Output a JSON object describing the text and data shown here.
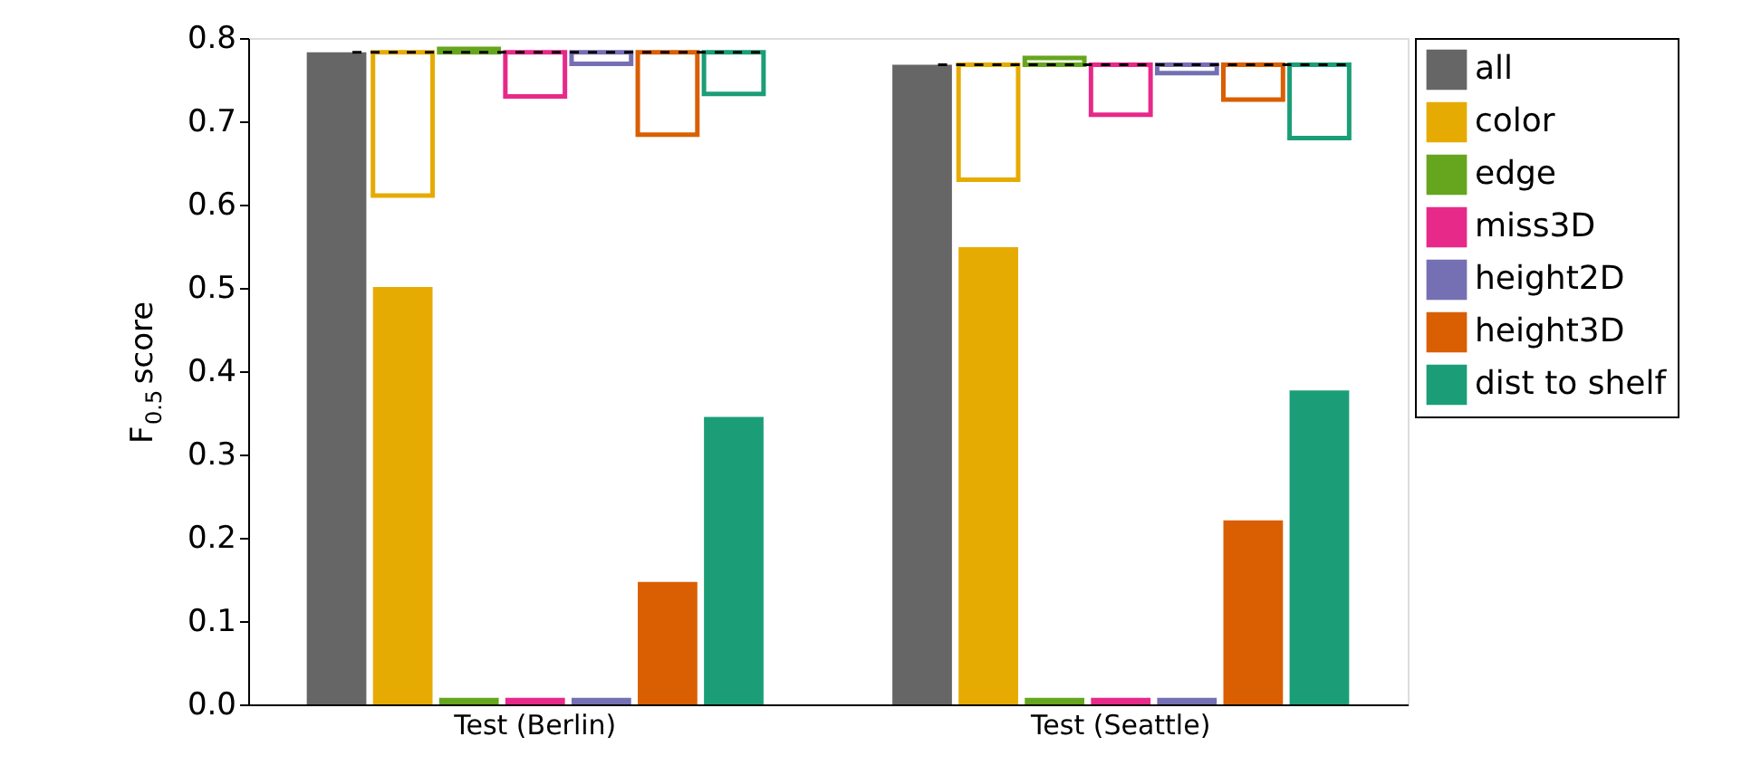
{
  "chart_data": {
    "type": "bar",
    "ylabel": "F$_{0.5}$ score",
    "categories": [
      "Test (Berlin)",
      "Test (Seattle)"
    ],
    "series": [
      {
        "name": "all",
        "color": "#666666",
        "values": [
          0.783,
          0.768
        ]
      },
      {
        "name": "color",
        "color": "#e6ab02",
        "values": [
          0.501,
          0.549
        ]
      },
      {
        "name": "edge",
        "color": "#66a61e",
        "values": [
          0.008,
          0.008
        ]
      },
      {
        "name": "miss3D",
        "color": "#e7298a",
        "values": [
          0.008,
          0.008
        ]
      },
      {
        "name": "height2D",
        "color": "#7570b3",
        "values": [
          0.008,
          0.008
        ]
      },
      {
        "name": "height3D",
        "color": "#d95f02",
        "values": [
          0.147,
          0.221
        ]
      },
      {
        "name": "dist to shelf",
        "color": "#1b9e77",
        "values": [
          0.345,
          0.377
        ]
      },
      {
        "color": "#e6ab02",
        "base": [
          0.783,
          0.768
        ],
        "values": [
          -0.172,
          -0.138
        ]
      },
      {
        "color": "#66a61e",
        "base": [
          0.783,
          0.768
        ],
        "values": [
          0.004,
          0.008
        ]
      },
      {
        "color": "#e7298a",
        "base": [
          0.783,
          0.768
        ],
        "values": [
          -0.053,
          -0.06
        ]
      },
      {
        "color": "#7570b3",
        "base": [
          0.783,
          0.768
        ],
        "values": [
          -0.014,
          -0.01
        ]
      },
      {
        "color": "#d95f02",
        "base": [
          0.783,
          0.768
        ],
        "values": [
          -0.099,
          -0.042
        ]
      },
      {
        "color": "#1b9e77",
        "base": [
          0.783,
          0.768
        ],
        "values": [
          -0.05,
          -0.088
        ]
      }
    ],
    "ref_lines": [
      {
        "axis": "y",
        "value": 0.783,
        "line_style": "dashed",
        "color": "#000000"
      },
      {
        "axis": "y",
        "value": 0.768,
        "line_style": "dashed",
        "color": "#000000"
      }
    ],
    "ylim": [
      0,
      0.8
    ],
    "yticks": [
      {
        "value": 0,
        "label": "0.0"
      },
      0.1,
      0.2,
      0.3,
      0.4,
      0.5,
      0.6,
      0.7,
      0.8
    ],
    "grid": false,
    "legend": "right"
  }
}
